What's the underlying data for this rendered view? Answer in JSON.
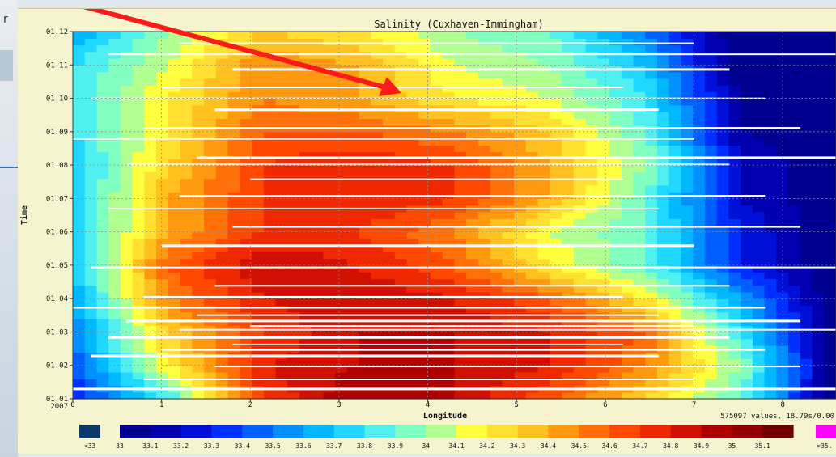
{
  "left_fragment": {
    "glyph": "r"
  },
  "colorbar": {
    "labels": [
      "<33",
      "33",
      "33.1",
      "33.2",
      "33.3",
      "33.4",
      "33.5",
      "33.6",
      "33.7",
      "33.8",
      "33.9",
      "34",
      "34.1",
      "34.2",
      "34.3",
      "34.4",
      "34.5",
      "34.6",
      "34.7",
      "34.8",
      "34.9",
      "35",
      "35.1",
      ">35."
    ],
    "under_color": "#0a3a6a",
    "over_color": "#ff00ff"
  },
  "annotation": {
    "type": "arrow",
    "color": "#ff1a1a"
  },
  "chart_data": {
    "type": "heatmap",
    "title": "Salinity (Cuxhaven-Immingham)",
    "xlabel": "Longitude",
    "ylabel": "Time",
    "x_ticks": [
      "0",
      "1",
      "2",
      "3",
      "4",
      "5",
      "6",
      "7",
      "8"
    ],
    "y_ticks": [
      "01.01\n2007",
      "01.02",
      "01.03",
      "01.04",
      "01.05",
      "01.06",
      "01.07",
      "01.08",
      "01.09",
      "01.10",
      "01.11",
      "01.12"
    ],
    "xlim": [
      0,
      8.6
    ],
    "ylim": [
      "01.01",
      "01.12"
    ],
    "grid": true,
    "stats_text": "575097 values, 18.79s/0.00",
    "colorscale": {
      "min": 33,
      "max": 35.1,
      "step": 0.1,
      "colors": [
        "#000090",
        "#0000b0",
        "#0010d8",
        "#0030ff",
        "#0060ff",
        "#0090ff",
        "#00b8ff",
        "#20d8ff",
        "#50f0f0",
        "#80ffc0",
        "#b0ff90",
        "#ffff40",
        "#ffe030",
        "#ffc020",
        "#ff9a10",
        "#ff7008",
        "#ff4800",
        "#f02800",
        "#d01000",
        "#b00000",
        "#900000",
        "#700000"
      ]
    },
    "series": [
      {
        "time": "01.01",
        "values": [
          33.3,
          33.8,
          34.7,
          35.0,
          34.9,
          34.6,
          34.3,
          33.9,
          33.0
        ]
      },
      {
        "time": "01.02",
        "values": [
          33.4,
          34.2,
          34.8,
          34.9,
          34.9,
          34.8,
          34.5,
          34.0,
          33.0
        ]
      },
      {
        "time": "01.03",
        "values": [
          33.5,
          34.3,
          34.7,
          34.9,
          34.9,
          34.8,
          34.6,
          33.8,
          33.0
        ]
      },
      {
        "time": "01.04",
        "values": [
          33.6,
          34.5,
          34.8,
          34.9,
          34.8,
          34.6,
          34.2,
          33.6,
          33.0
        ]
      },
      {
        "time": "01.05",
        "values": [
          33.7,
          34.6,
          34.9,
          34.8,
          34.6,
          34.2,
          33.9,
          33.3,
          33.0
        ]
      },
      {
        "time": "01.06",
        "values": [
          33.7,
          34.4,
          34.7,
          34.7,
          34.5,
          34.1,
          33.9,
          33.3,
          33.0
        ]
      },
      {
        "time": "01.07",
        "values": [
          33.7,
          34.4,
          34.7,
          34.8,
          34.7,
          34.4,
          33.9,
          33.2,
          33.0
        ]
      },
      {
        "time": "01.08",
        "values": [
          33.7,
          34.3,
          34.7,
          34.8,
          34.7,
          34.4,
          34.0,
          33.2,
          33.0
        ]
      },
      {
        "time": "01.09",
        "values": [
          33.8,
          34.2,
          34.6,
          34.6,
          34.5,
          34.3,
          33.9,
          33.1,
          33.0
        ]
      },
      {
        "time": "01.10",
        "values": [
          33.8,
          34.2,
          34.5,
          34.4,
          34.2,
          34.1,
          33.8,
          33.1,
          33.0
        ]
      },
      {
        "time": "01.11",
        "values": [
          33.8,
          34.1,
          34.5,
          34.4,
          34.1,
          34.0,
          33.7,
          33.0,
          33.0
        ]
      },
      {
        "time": "01.12",
        "values": [
          33.6,
          34.0,
          34.3,
          34.2,
          34.0,
          33.9,
          33.5,
          33.0,
          33.0
        ]
      }
    ]
  }
}
